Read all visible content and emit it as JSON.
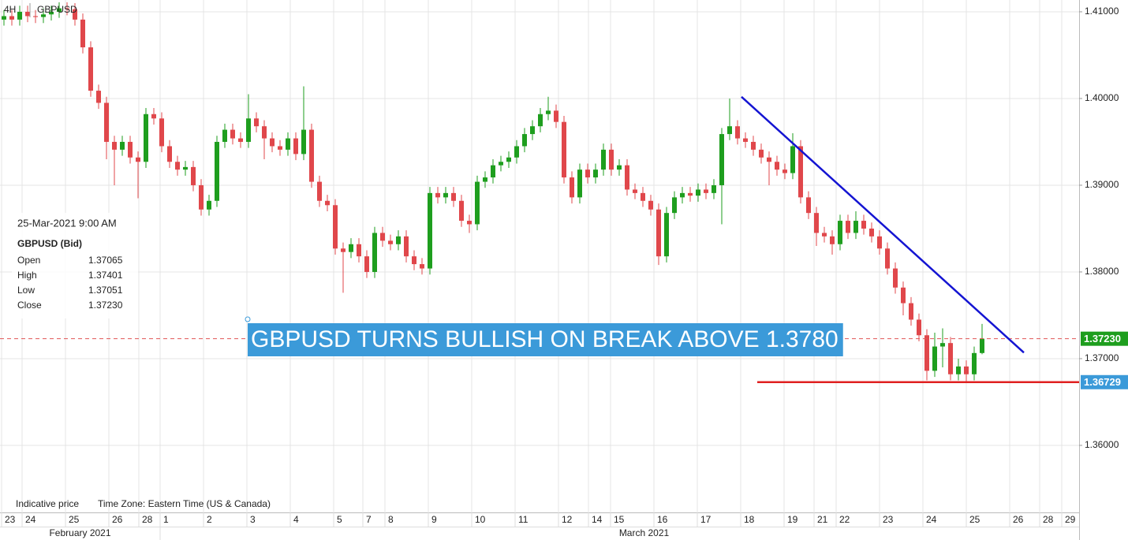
{
  "chart_data": {
    "type": "candlestick",
    "title": "GBPUSD",
    "timeframe": "4H",
    "annotation": "GBPUSD TURNS BULLISH ON BREAK ABOVE 1.3780",
    "footer": [
      "Indicative price",
      "Time Zone: Eastern Time (US & Canada)"
    ],
    "months": [
      "February 2021",
      "March 2021"
    ],
    "info": {
      "date": "25-Mar-2021 9:00 AM",
      "symbol": "GBPUSD (Bid)",
      "fields": [
        {
          "label": "Open",
          "value": "1.37065"
        },
        {
          "label": "High",
          "value": "1.37401"
        },
        {
          "label": "Low",
          "value": "1.37051"
        },
        {
          "label": "Close",
          "value": "1.37230"
        }
      ]
    },
    "up_color": "#1e9e1e",
    "down_color": "#e0474b",
    "grid": true,
    "xlim": [
      -0.5,
      136.3
    ],
    "ylim": [
      1.35227,
      1.41136
    ],
    "xticks": [
      {
        "value": -0.3,
        "label": "23"
      },
      {
        "value": 2.3,
        "label": "24"
      },
      {
        "value": 7.8,
        "label": "25"
      },
      {
        "value": 13.3,
        "label": "26"
      },
      {
        "value": 17.1,
        "label": "28"
      },
      {
        "value": 19.8,
        "label": "1"
      },
      {
        "value": 25.3,
        "label": "2"
      },
      {
        "value": 30.8,
        "label": "3"
      },
      {
        "value": 36.3,
        "label": "4"
      },
      {
        "value": 41.8,
        "label": "5"
      },
      {
        "value": 45.5,
        "label": "7"
      },
      {
        "value": 48.3,
        "label": "8"
      },
      {
        "value": 53.8,
        "label": "9"
      },
      {
        "value": 59.3,
        "label": "10"
      },
      {
        "value": 64.8,
        "label": "11"
      },
      {
        "value": 70.3,
        "label": "12"
      },
      {
        "value": 74.1,
        "label": "14"
      },
      {
        "value": 76.9,
        "label": "15"
      },
      {
        "value": 82.4,
        "label": "16"
      },
      {
        "value": 87.9,
        "label": "17"
      },
      {
        "value": 93.4,
        "label": "18"
      },
      {
        "value": 98.9,
        "label": "19"
      },
      {
        "value": 102.7,
        "label": "21"
      },
      {
        "value": 105.5,
        "label": "22"
      },
      {
        "value": 111,
        "label": "23"
      },
      {
        "value": 116.5,
        "label": "24"
      },
      {
        "value": 122,
        "label": "25"
      },
      {
        "value": 127.5,
        "label": "26"
      },
      {
        "value": 131.3,
        "label": "28"
      },
      {
        "value": 134.1,
        "label": "29"
      }
    ],
    "yticks": [
      {
        "value": 1.36,
        "label": "1.36000"
      },
      {
        "value": 1.37,
        "label": "1.37000"
      },
      {
        "value": 1.38,
        "label": "1.38000"
      },
      {
        "value": 1.39,
        "label": "1.39000"
      },
      {
        "value": 1.4,
        "label": "1.40000"
      },
      {
        "value": 1.41,
        "label": "1.41000"
      }
    ],
    "price_labels": [
      {
        "value": 1.3723,
        "label": "1.37230",
        "color": "#1e9e1e"
      },
      {
        "value": 1.36729,
        "label": "1.36729",
        "color": "#3b9ad9"
      }
    ],
    "lines": [
      {
        "x": [
          93.5,
          129.3
        ],
        "y": [
          1.4002,
          1.3707
        ],
        "color": "#1414d2"
      },
      {
        "x": [
          95.5,
          136.3
        ],
        "y": [
          1.36729,
          1.36729
        ],
        "color": "#e02020"
      }
    ],
    "x": [
      0,
      1,
      2,
      3,
      4,
      5,
      6,
      7,
      8,
      9,
      10,
      11,
      12,
      13,
      14,
      15,
      16,
      17,
      18,
      19,
      20,
      21,
      22,
      23,
      24,
      25,
      26,
      27,
      28,
      29,
      30,
      31,
      32,
      33,
      34,
      35,
      36,
      37,
      38,
      39,
      40,
      41,
      42,
      43,
      44,
      45,
      46,
      47,
      48,
      49,
      50,
      51,
      52,
      53,
      54,
      55,
      56,
      57,
      58,
      59,
      60,
      61,
      62,
      63,
      64,
      65,
      66,
      67,
      68,
      69,
      70,
      71,
      72,
      73,
      74,
      75,
      76,
      77,
      78,
      79,
      80,
      81,
      82,
      83,
      84,
      85,
      86,
      87,
      88,
      89,
      90,
      91,
      92,
      93,
      94,
      95,
      96,
      97,
      98,
      99,
      100,
      101,
      102,
      103,
      104,
      105,
      106,
      107,
      108,
      109,
      110,
      111,
      112,
      113,
      114,
      115,
      116,
      117,
      118,
      119,
      120,
      121,
      122,
      123,
      124
    ],
    "series": [
      {
        "name": "GBPUSD",
        "open": [
          1.4091,
          1.4095,
          1.4091,
          1.41,
          1.4095,
          1.4094,
          1.4097,
          1.41,
          1.4104,
          1.4103,
          1.4091,
          1.4059,
          1.4009,
          1.3995,
          1.395,
          1.3941,
          1.395,
          1.3932,
          1.3927,
          1.3982,
          1.3977,
          1.3945,
          1.3927,
          1.3918,
          1.3921,
          1.39,
          1.3872,
          1.3882,
          1.395,
          1.3964,
          1.3954,
          1.395,
          1.3977,
          1.3968,
          1.3954,
          1.3945,
          1.3941,
          1.3954,
          1.3936,
          1.3964,
          1.3904,
          1.3882,
          1.3877,
          1.3827,
          1.3823,
          1.3832,
          1.3818,
          1.38,
          1.3845,
          1.3836,
          1.3832,
          1.3841,
          1.3818,
          1.3809,
          1.3804,
          1.3891,
          1.3886,
          1.3891,
          1.3882,
          1.3859,
          1.3855,
          1.3904,
          1.3909,
          1.3923,
          1.3927,
          1.3932,
          1.3945,
          1.3959,
          1.3968,
          1.3982,
          1.3986,
          1.3973,
          1.3909,
          1.3886,
          1.3918,
          1.3909,
          1.3918,
          1.3941,
          1.3918,
          1.3923,
          1.3895,
          1.3891,
          1.3882,
          1.3872,
          1.3818,
          1.3868,
          1.3886,
          1.3891,
          1.3888,
          1.3895,
          1.3891,
          1.39,
          1.3959,
          1.3968,
          1.3954,
          1.395,
          1.3941,
          1.3932,
          1.3927,
          1.3918,
          1.3914,
          1.3945,
          1.3886,
          1.3868,
          1.3845,
          1.3841,
          1.3832,
          1.3859,
          1.3845,
          1.3859,
          1.385,
          1.3841,
          1.3827,
          1.3804,
          1.3782,
          1.3764,
          1.3745,
          1.3727,
          1.3686,
          1.3714,
          1.3718,
          1.3682,
          1.3691,
          1.3682,
          1.37065
        ],
        "high": [
          1.4102,
          1.4102,
          1.4107,
          1.4107,
          1.4102,
          1.4104,
          1.4107,
          1.4111,
          1.4111,
          1.411,
          1.4098,
          1.4066,
          1.4016,
          1.4002,
          1.3957,
          1.3957,
          1.3957,
          1.3939,
          1.3989,
          1.3989,
          1.3984,
          1.3952,
          1.3934,
          1.3928,
          1.3928,
          1.3907,
          1.3889,
          1.3957,
          1.3971,
          1.3971,
          1.3961,
          1.4005,
          1.3984,
          1.3975,
          1.3961,
          1.3952,
          1.3961,
          1.3961,
          1.4014,
          1.3971,
          1.3911,
          1.3889,
          1.3884,
          1.3834,
          1.3839,
          1.3839,
          1.3825,
          1.3852,
          1.3852,
          1.3843,
          1.3848,
          1.3848,
          1.3825,
          1.3816,
          1.3898,
          1.3898,
          1.3898,
          1.3898,
          1.3889,
          1.3866,
          1.3911,
          1.3916,
          1.393,
          1.3934,
          1.3939,
          1.3952,
          1.3966,
          1.3975,
          1.3989,
          1.4002,
          1.3993,
          1.398,
          1.3916,
          1.3925,
          1.3925,
          1.3925,
          1.3948,
          1.3948,
          1.393,
          1.393,
          1.3902,
          1.3898,
          1.3889,
          1.3879,
          1.3875,
          1.3893,
          1.3898,
          1.3898,
          1.3902,
          1.3902,
          1.3907,
          1.3966,
          1.4,
          1.3975,
          1.3961,
          1.3957,
          1.3948,
          1.3939,
          1.3934,
          1.3925,
          1.396,
          1.3952,
          1.3893,
          1.3875,
          1.3852,
          1.3848,
          1.3866,
          1.3866,
          1.387,
          1.3866,
          1.3857,
          1.3848,
          1.3834,
          1.3811,
          1.3789,
          1.3771,
          1.3752,
          1.3734,
          1.373,
          1.3735,
          1.3725,
          1.37,
          1.3698,
          1.3714,
          1.37401
        ],
        "low": [
          1.4084,
          1.4084,
          1.4084,
          1.4088,
          1.4087,
          1.4087,
          1.409,
          1.4093,
          1.4096,
          1.4084,
          1.4052,
          1.4002,
          1.3988,
          1.393,
          1.39,
          1.3934,
          1.3925,
          1.3885,
          1.392,
          1.397,
          1.3938,
          1.392,
          1.3911,
          1.3911,
          1.3893,
          1.3865,
          1.3865,
          1.3875,
          1.3943,
          1.3947,
          1.3943,
          1.3943,
          1.3961,
          1.393,
          1.3938,
          1.3934,
          1.3934,
          1.3929,
          1.3929,
          1.3897,
          1.3875,
          1.387,
          1.382,
          1.3776,
          1.3816,
          1.3811,
          1.3793,
          1.3793,
          1.3829,
          1.3825,
          1.3825,
          1.3811,
          1.3802,
          1.3797,
          1.3797,
          1.3879,
          1.3879,
          1.3875,
          1.3852,
          1.3845,
          1.3848,
          1.3897,
          1.3902,
          1.3916,
          1.392,
          1.3925,
          1.3938,
          1.3952,
          1.3961,
          1.3975,
          1.3966,
          1.3902,
          1.3879,
          1.3879,
          1.3902,
          1.3902,
          1.3911,
          1.3911,
          1.3911,
          1.3888,
          1.3884,
          1.3875,
          1.3865,
          1.3808,
          1.3811,
          1.3861,
          1.3879,
          1.3881,
          1.3881,
          1.3884,
          1.3884,
          1.3855,
          1.3952,
          1.3947,
          1.3943,
          1.3934,
          1.3925,
          1.39,
          1.3911,
          1.3907,
          1.3907,
          1.3879,
          1.3861,
          1.383,
          1.3834,
          1.382,
          1.3825,
          1.3838,
          1.3838,
          1.3843,
          1.3834,
          1.382,
          1.3797,
          1.3775,
          1.375,
          1.3738,
          1.372,
          1.3675,
          1.3679,
          1.369,
          1.3675,
          1.3675,
          1.3673,
          1.3675,
          1.37051
        ],
        "close": [
          1.4095,
          1.4091,
          1.41,
          1.4095,
          1.4094,
          1.4097,
          1.41,
          1.4104,
          1.4103,
          1.4091,
          1.4059,
          1.4009,
          1.3995,
          1.395,
          1.3941,
          1.395,
          1.3932,
          1.3927,
          1.3982,
          1.3977,
          1.3945,
          1.3927,
          1.3918,
          1.3921,
          1.39,
          1.3872,
          1.3882,
          1.395,
          1.3964,
          1.3954,
          1.395,
          1.3977,
          1.3968,
          1.3954,
          1.3945,
          1.3941,
          1.3954,
          1.3936,
          1.3964,
          1.3904,
          1.3882,
          1.3877,
          1.3827,
          1.3823,
          1.3832,
          1.3818,
          1.38,
          1.3845,
          1.3836,
          1.3832,
          1.3841,
          1.3818,
          1.3809,
          1.3804,
          1.3891,
          1.3886,
          1.3891,
          1.3882,
          1.3859,
          1.3855,
          1.3904,
          1.3909,
          1.3923,
          1.3927,
          1.3932,
          1.3945,
          1.3959,
          1.3968,
          1.3982,
          1.3986,
          1.3973,
          1.3909,
          1.3886,
          1.3918,
          1.3909,
          1.3918,
          1.3941,
          1.3918,
          1.3923,
          1.3895,
          1.3891,
          1.3882,
          1.3872,
          1.3818,
          1.3868,
          1.3886,
          1.3891,
          1.3888,
          1.3895,
          1.3891,
          1.39,
          1.3959,
          1.3968,
          1.3954,
          1.395,
          1.3941,
          1.3932,
          1.3927,
          1.3918,
          1.3914,
          1.3945,
          1.3886,
          1.3868,
          1.3845,
          1.3841,
          1.3832,
          1.3859,
          1.3845,
          1.3859,
          1.385,
          1.3841,
          1.3827,
          1.3804,
          1.3782,
          1.3764,
          1.3745,
          1.3727,
          1.3686,
          1.3714,
          1.3718,
          1.3682,
          1.3691,
          1.3682,
          1.37065,
          1.3723
        ]
      }
    ]
  }
}
